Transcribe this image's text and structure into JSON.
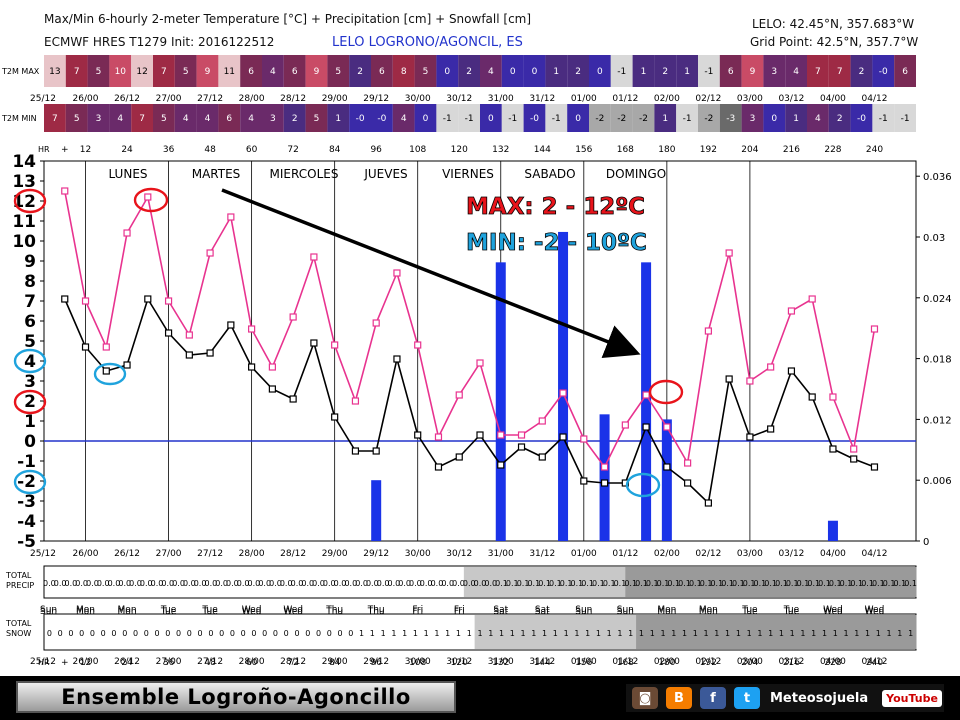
{
  "header": {
    "title": "Max/Min 6-hourly 2-meter Temperature [°C] + Precipitation [cm] + Snowfall [cm]",
    "subtitle": "ECMWF HRES T1279 Init: 2016122512",
    "location": "LELO LOGRONO/AGONCIL, ES",
    "coords": "LELO: 42.45°N, 357.683°W",
    "grid_point": "Grid Point: 42.5°N, 357.7°W"
  },
  "strips": {
    "max_label": "T2M MAX",
    "min_label": "T2M MIN",
    "max_values": [
      "13",
      "7",
      "5",
      "10",
      "12",
      "7",
      "5",
      "9",
      "11",
      "6",
      "4",
      "6",
      "9",
      "5",
      "2",
      "6",
      "8",
      "5",
      "0",
      "2",
      "4",
      "0",
      "0",
      "1",
      "2",
      "0",
      "-1",
      "1",
      "2",
      "1",
      "-1",
      "6",
      "9",
      "3",
      "4",
      "7",
      "7",
      "2",
      "-0",
      "6"
    ],
    "min_values": [
      "7",
      "5",
      "3",
      "4",
      "7",
      "5",
      "4",
      "4",
      "6",
      "4",
      "3",
      "2",
      "5",
      "1",
      "-0",
      "-0",
      "4",
      "0",
      "-1",
      "-1",
      "0",
      "-1",
      "-0",
      "-1",
      "0",
      "-2",
      "-2",
      "-2",
      "1",
      "-1",
      "-2",
      "-3",
      "3",
      "0",
      "1",
      "4",
      "2",
      "-0",
      "-1",
      "-1"
    ]
  },
  "date_labels": [
    "25/12",
    "26/00",
    "26/12",
    "27/00",
    "27/12",
    "28/00",
    "28/12",
    "29/00",
    "29/12",
    "30/00",
    "30/12",
    "31/00",
    "31/12",
    "01/00",
    "01/12",
    "02/00",
    "02/12",
    "03/00",
    "03/12",
    "04/00",
    "04/12"
  ],
  "hour_labels": [
    "HR",
    "+",
    "12",
    "24",
    "36",
    "48",
    "60",
    "72",
    "84",
    "96",
    "108",
    "120",
    "132",
    "144",
    "156",
    "168",
    "180",
    "192",
    "204",
    "216",
    "228",
    "240"
  ],
  "day_labels": [
    "Sun",
    "Mon",
    "Mon",
    "Tue",
    "Tue",
    "Wed",
    "Wed",
    "Thu",
    "Thu",
    "Fri",
    "Fri",
    "Sat",
    "Sat",
    "Sun",
    "Sun",
    "Mon",
    "Mon",
    "Tue",
    "Tue",
    "Wed",
    "Wed"
  ],
  "weekday_annotations": [
    "LUNES",
    "MARTES",
    "MIERCOLES",
    "JUEVES",
    "VIERNES",
    "SABADO",
    "DOMINGO"
  ],
  "summary": {
    "max_text": "MAX: 2 - 12ºC",
    "min_text": "MIN: -2 - 10ºC",
    "max_color": "#e8141b",
    "min_color": "#1fa3dd"
  },
  "precip_row": {
    "label1": "TOTAL",
    "label2": "PRECIP",
    "values": [
      "0.0",
      "0.0",
      "0.0",
      "0.0",
      "0.0",
      "0.0",
      "0.0",
      "0.0",
      "0.0",
      "0.0",
      "0.0",
      "0.0",
      "0.0",
      "0.0",
      "0.0",
      "0.0",
      "0.0",
      "0.0",
      "0.0",
      "0.0",
      "0.0",
      "0.0",
      "0.0",
      "0.0",
      "0.0",
      "0.0",
      "0.0",
      "0.0",
      "0.0",
      "0.0",
      "0.0",
      "0.0",
      "0.0",
      "0.0",
      "0.0",
      "0.0",
      "0.0",
      "0.0",
      "0.0",
      "0.0",
      "0.0",
      "0.0",
      "0.1",
      "0.1",
      "0.1",
      "0.1",
      "0.1",
      "0.1",
      "0.1",
      "0.1",
      "0.1",
      "0.1",
      "0.1",
      "0.1",
      "0.1",
      "0.1",
      "0.1",
      "0.1",
      "0.1",
      "0.1",
      "0.1",
      "0.1",
      "0.1",
      "0.1",
      "0.1",
      "0.1",
      "0.1",
      "0.1",
      "0.1",
      "0.1",
      "0.1",
      "0.1",
      "0.1",
      "0.1",
      "0.1",
      "0.1",
      "0.1",
      "0.1",
      "0.1",
      "0.1",
      "0.1"
    ]
  },
  "snow_row": {
    "label1": "TOTAL",
    "label2": "SNOW",
    "values": [
      "0",
      "0",
      "0",
      "0",
      "0",
      "0",
      "0",
      "0",
      "0",
      "0",
      "0",
      "0",
      "0",
      "0",
      "0",
      "0",
      "0",
      "0",
      "0",
      "0",
      "0",
      "0",
      "0",
      "0",
      "0",
      "0",
      "0",
      "0",
      "0",
      "1",
      "1",
      "1",
      "1",
      "1",
      "1",
      "1",
      "1",
      "1",
      "1",
      "1",
      "1",
      "1",
      "1",
      "1",
      "1",
      "1",
      "1",
      "1",
      "1",
      "1",
      "1",
      "1",
      "1",
      "1",
      "1",
      "1",
      "1",
      "1",
      "1",
      "1",
      "1",
      "1",
      "1",
      "1",
      "1",
      "1",
      "1",
      "1",
      "1",
      "1",
      "1",
      "1",
      "1",
      "1",
      "1",
      "1",
      "1",
      "1",
      "1",
      "1",
      "1"
    ]
  },
  "footer": {
    "title": "Ensemble Logroño-Agoncillo",
    "brand": "Meteosojuela",
    "youtube": "YouTube"
  },
  "colors": {
    "max_line": "#e8338f",
    "min_line": "#000000",
    "precip_bar": "#1a33e8",
    "zero_line": "#2233cc"
  },
  "chart_data": {
    "type": "line",
    "title": "Max/Min 6-hourly 2-meter Temperature [°C] + Precipitation [cm] + Snowfall [cm]",
    "x": [
      6,
      12,
      18,
      24,
      30,
      36,
      42,
      48,
      54,
      60,
      66,
      72,
      78,
      84,
      90,
      96,
      102,
      108,
      114,
      120,
      126,
      132,
      138,
      144,
      150,
      156,
      162,
      168,
      174,
      180,
      186,
      192,
      198,
      204,
      210,
      216,
      222,
      228,
      234,
      240
    ],
    "series": [
      {
        "name": "T2M MAX",
        "values": [
          12.5,
          7.0,
          4.7,
          10.4,
          12.2,
          7.0,
          5.3,
          9.4,
          11.2,
          5.6,
          3.7,
          6.2,
          9.2,
          4.8,
          2.0,
          5.9,
          8.4,
          4.8,
          0.2,
          2.3,
          3.9,
          0.3,
          0.3,
          1.0,
          2.4,
          0.1,
          -1.3,
          0.8,
          2.3,
          0.7,
          -1.1,
          5.5,
          9.4,
          3.0,
          3.7,
          6.5,
          7.1,
          2.2,
          -0.4,
          5.6
        ]
      },
      {
        "name": "T2M MIN",
        "values": [
          7.1,
          4.7,
          3.5,
          3.8,
          7.1,
          5.4,
          4.3,
          4.4,
          5.8,
          3.7,
          2.6,
          2.1,
          4.9,
          1.2,
          -0.5,
          -0.5,
          4.1,
          0.3,
          -1.3,
          -0.8,
          0.3,
          -1.2,
          -0.3,
          -0.8,
          0.2,
          -2.0,
          -2.1,
          -2.1,
          0.7,
          -1.3,
          -2.1,
          -3.1,
          3.1,
          0.2,
          0.6,
          3.5,
          2.2,
          -0.4,
          -0.9,
          -1.3
        ]
      }
    ],
    "precip": {
      "x": [
        96,
        132,
        150,
        162,
        174,
        180,
        228
      ],
      "values": [
        0.006,
        0.0275,
        0.0305,
        0.0125,
        0.0275,
        0.012,
        0.002
      ]
    },
    "ylim": [
      -5,
      14
    ],
    "y2lim": [
      0,
      0.0375
    ],
    "y2ticks": [
      0,
      0.006,
      0.012,
      0.018,
      0.024,
      0.03,
      0.036
    ]
  }
}
